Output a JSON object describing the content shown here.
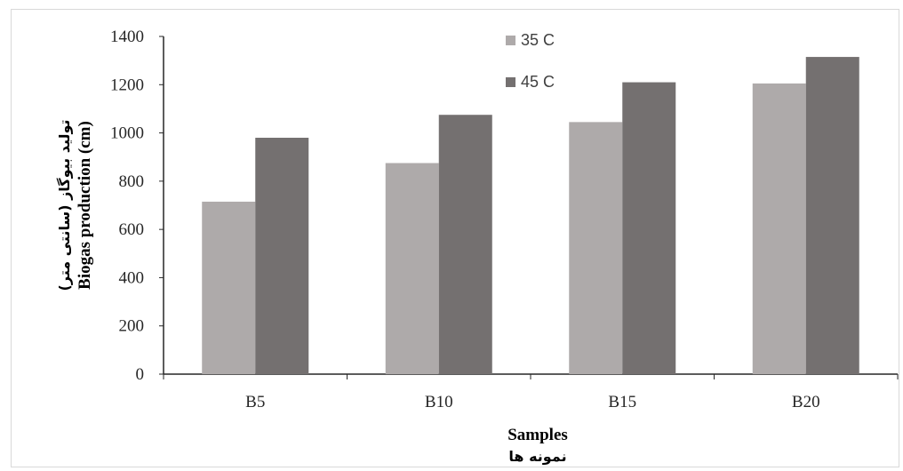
{
  "chart_data": {
    "type": "bar",
    "categories": [
      "B5",
      "B10",
      "B15",
      "B20"
    ],
    "series": [
      {
        "name": "35 C",
        "values": [
          715,
          875,
          1045,
          1205
        ],
        "color": "#aeaaaa"
      },
      {
        "name": "45 C",
        "values": [
          980,
          1075,
          1210,
          1315
        ],
        "color": "#747070"
      }
    ],
    "title": "",
    "xlabel": "Samples",
    "xlabel_fa": "نمونه ها",
    "ylabel": "Biogas production (cm)",
    "ylabel_fa": "تولید بیوگاز (سانتی متر)",
    "ylim": [
      0,
      1400
    ],
    "yticks": [
      "0",
      "200",
      "400",
      "600",
      "800",
      "1000",
      "1200",
      "1400"
    ],
    "grid": false,
    "legend_position": "top-center"
  }
}
